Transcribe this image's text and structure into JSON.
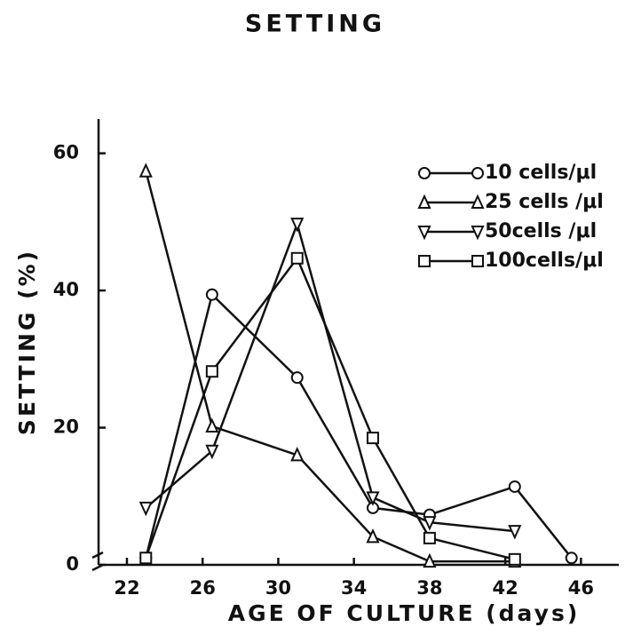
{
  "chart_data": {
    "type": "line",
    "title": "SETTING",
    "x_label": "AGE OF CULTURE (days)",
    "y_label": "SETTING (%)",
    "xlim": [
      20.5,
      48
    ],
    "xticks": [
      22,
      26,
      30,
      34,
      38,
      42,
      46
    ],
    "ylim": [
      0,
      65
    ],
    "yticks": [
      0,
      20,
      40,
      60
    ],
    "grid": false,
    "legend": "upper right",
    "series": [
      {
        "name": "10 cells/μl",
        "color": "#111111",
        "marker": "circle",
        "x": [
          23,
          26.5,
          31,
          35,
          38,
          42.5,
          45.5
        ],
        "values": [
          1,
          39.4,
          27.3,
          8.3,
          7.3,
          11.4,
          1
        ]
      },
      {
        "name": "25 cells /μl",
        "color": "#111111",
        "marker": "triangle-up",
        "x": [
          23,
          26.5,
          31,
          35,
          38,
          42.5
        ],
        "values": [
          57.4,
          20.2,
          16,
          4.1,
          0.5,
          0.5
        ]
      },
      {
        "name": "50cells /μl",
        "color": "#111111",
        "marker": "triangle-down",
        "x": [
          23,
          26.5,
          31,
          35,
          38,
          42.5
        ],
        "values": [
          8.3,
          16.6,
          49.7,
          9.8,
          6.2,
          4.9
        ]
      },
      {
        "name": "100cells/μl",
        "color": "#111111",
        "marker": "square",
        "x": [
          23,
          26.5,
          31,
          35,
          38,
          42.5
        ],
        "values": [
          1,
          28.2,
          44.7,
          18.5,
          3.9,
          0.8
        ]
      }
    ]
  }
}
